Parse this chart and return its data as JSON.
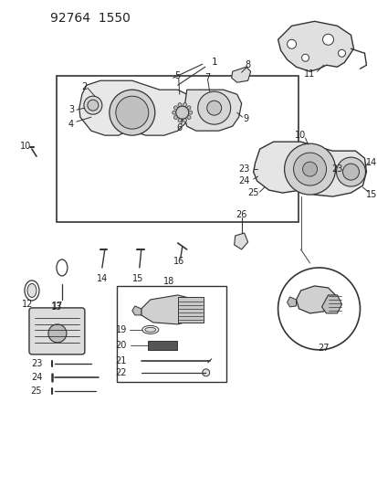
{
  "title": "92764  1550",
  "bg_color": "#ffffff",
  "line_color": "#333333",
  "text_color": "#222222",
  "figsize": [
    4.14,
    5.33
  ],
  "dpi": 100
}
